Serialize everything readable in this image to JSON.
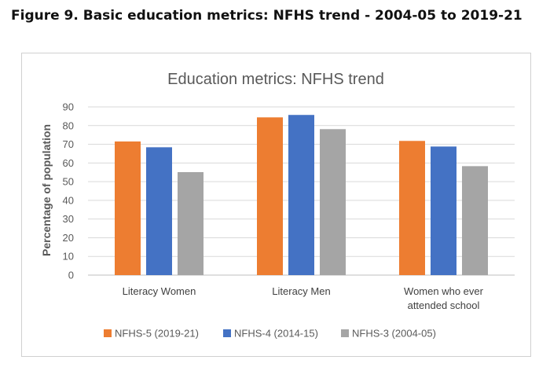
{
  "figure": {
    "caption": "Figure 9.  Basic education metrics: NFHS trend - 2004-05 to 2019-21"
  },
  "chart_data": {
    "type": "bar",
    "title": "Education metrics: NFHS trend",
    "xlabel": "",
    "ylabel": "Percentage of population",
    "ylim": [
      0,
      90
    ],
    "yticks": [
      0,
      10,
      20,
      30,
      40,
      50,
      60,
      70,
      80,
      90
    ],
    "grid": true,
    "legend_position": "bottom",
    "categories": [
      [
        "Literacy Women"
      ],
      [
        "Literacy Men"
      ],
      [
        "Women who ever",
        "attended school"
      ]
    ],
    "series": [
      {
        "name": "NFHS-5 (2019-21)",
        "color": "#ED7D31",
        "values": [
          71.5,
          84.4,
          71.8
        ]
      },
      {
        "name": "NFHS-4  (2014-15)",
        "color": "#4472C4",
        "values": [
          68.4,
          85.7,
          68.8
        ]
      },
      {
        "name": "NFHS-3 (2004-05)",
        "color": "#A5A5A5",
        "values": [
          55.1,
          78.1,
          58.3
        ]
      }
    ]
  }
}
